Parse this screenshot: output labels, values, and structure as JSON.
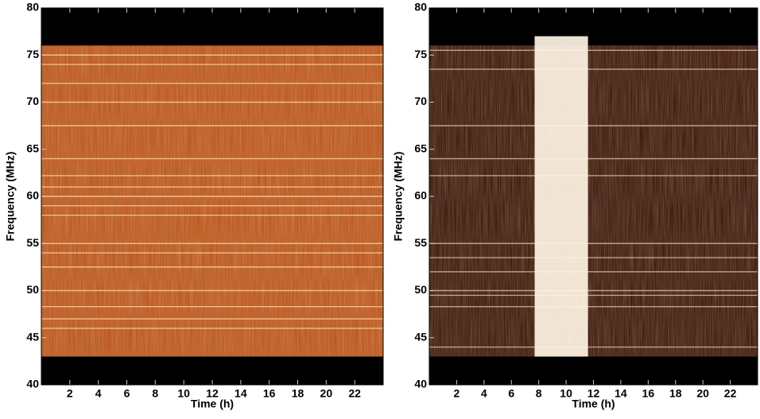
{
  "chart_data": [
    {
      "type": "spectrogram",
      "xlabel": "Time (h)",
      "ylabel": "Frequency (MHz)",
      "xlim": [
        0,
        24
      ],
      "ylim": [
        40,
        80
      ],
      "xticks": [
        2,
        4,
        6,
        8,
        10,
        12,
        14,
        16,
        18,
        20,
        22
      ],
      "yticks": [
        40,
        45,
        50,
        55,
        60,
        65,
        70,
        75,
        80
      ],
      "signal_band": [
        43,
        76
      ],
      "band_color": "#b8531a",
      "line_color": "#ffd9a8",
      "lines": [
        46,
        47,
        48.3,
        50,
        52.5,
        54,
        55,
        58,
        59,
        60,
        61,
        62.2,
        64,
        67.5,
        70,
        72,
        74,
        75
      ]
    },
    {
      "type": "spectrogram",
      "xlabel": "Time (h)",
      "ylabel": "Frequency (MHz)",
      "xlim": [
        0,
        24
      ],
      "ylim": [
        40,
        80
      ],
      "xticks": [
        2,
        4,
        6,
        8,
        10,
        12,
        14,
        16,
        18,
        20,
        22
      ],
      "yticks": [
        40,
        45,
        50,
        55,
        60,
        65,
        70,
        75,
        80
      ],
      "signal_band": [
        43,
        76
      ],
      "band_color": "#3a1509",
      "line_color": "#e8c7a8",
      "lines": [
        44,
        48.3,
        49.5,
        50,
        52,
        53.5,
        55,
        62.2,
        64,
        67.5,
        73.5,
        75.5
      ],
      "burst": {
        "x": [
          7.7,
          11.6
        ],
        "y": [
          43,
          77
        ],
        "color": "#fff4e4"
      }
    }
  ]
}
